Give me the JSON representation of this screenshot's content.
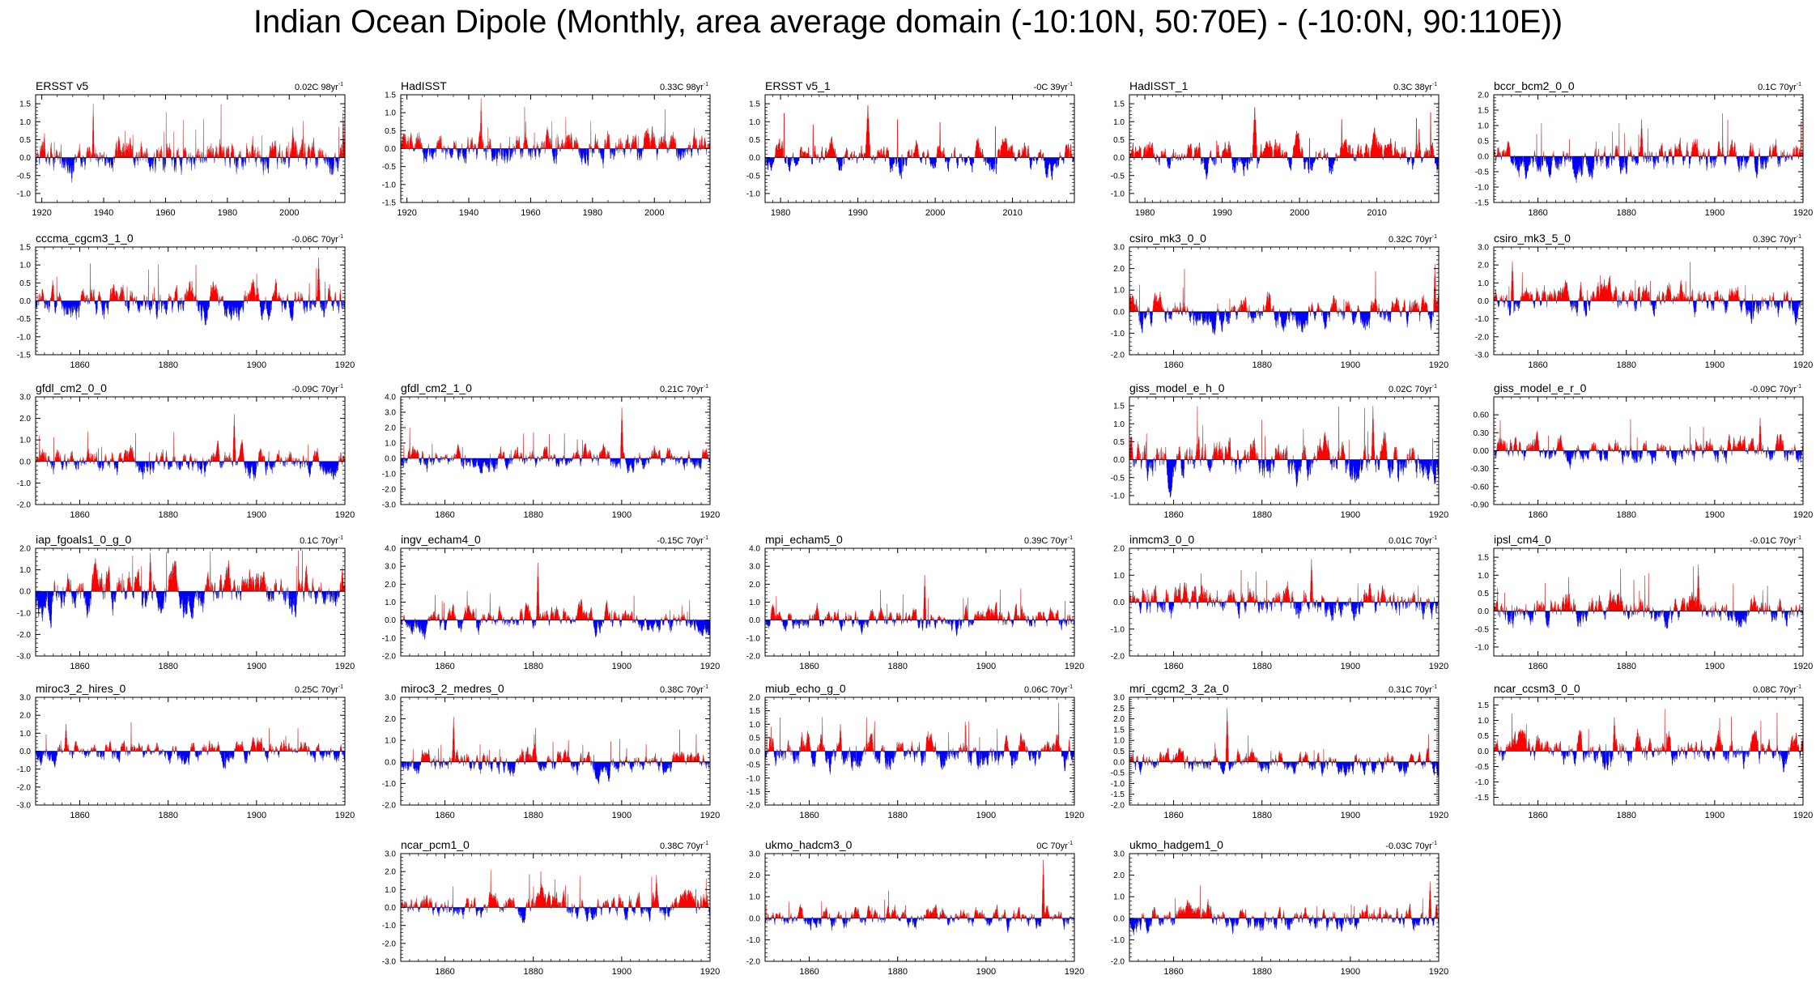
{
  "title": "Indian Ocean Dipole (Monthly, area average domain (-10:10N, 50:70E) - (-10:0N, 90:110E))",
  "colors": {
    "positive": "#ff0000",
    "negative": "#0000ff",
    "line": "#999999",
    "frame": "#000000"
  },
  "chart_data": [
    {
      "type": "bar",
      "row": 0,
      "col": 0,
      "title": "ERSST v5",
      "trend": "0.02C 98yr",
      "trend_sup": "-1",
      "xlim": [
        1918,
        2018
      ],
      "ylim": [
        -1.25,
        1.75
      ],
      "xticks": [
        1920,
        1940,
        1960,
        1980,
        2000
      ],
      "yticks": [
        "-1.0",
        "-0.5",
        "0.0",
        "0.5",
        "1.0",
        "1.5"
      ],
      "yvals": [
        -1,
        -0.5,
        0,
        0.5,
        1,
        1.5
      ],
      "amp": 0.45,
      "peak": 1.5,
      "seed": 11
    },
    {
      "type": "bar",
      "row": 0,
      "col": 1,
      "title": "HadISST",
      "trend": "0.33C 98yr",
      "trend_sup": "-1",
      "xlim": [
        1918,
        2018
      ],
      "ylim": [
        -1.5,
        1.5
      ],
      "xticks": [
        1920,
        1940,
        1960,
        1980,
        2000
      ],
      "yticks": [
        "-1.5",
        "-1.0",
        "-0.5",
        "0.0",
        "0.5",
        "1.0",
        "1.5"
      ],
      "yvals": [
        -1.5,
        -1,
        -0.5,
        0,
        0.5,
        1,
        1.5
      ],
      "amp": 0.4,
      "peak": 1.4,
      "seed": 12
    },
    {
      "type": "bar",
      "row": 0,
      "col": 2,
      "title": "ERSST v5_1",
      "trend": "-0C 39yr",
      "trend_sup": "-1",
      "xlim": [
        1978,
        2018
      ],
      "ylim": [
        -1.25,
        1.75
      ],
      "xticks": [
        1980,
        1990,
        2000,
        2010
      ],
      "yticks": [
        "-1.0",
        "-0.5",
        "0.0",
        "0.5",
        "1.0",
        "1.5"
      ],
      "yvals": [
        -1,
        -0.5,
        0,
        0.5,
        1,
        1.5
      ],
      "amp": 0.5,
      "peak": 1.45,
      "seed": 13
    },
    {
      "type": "bar",
      "row": 0,
      "col": 3,
      "title": "HadISST_1",
      "trend": "0.3C 38yr",
      "trend_sup": "-1",
      "xlim": [
        1978,
        2018
      ],
      "ylim": [
        -1.25,
        1.75
      ],
      "xticks": [
        1980,
        1990,
        2000,
        2010
      ],
      "yticks": [
        "-1.0",
        "-0.5",
        "0.0",
        "0.5",
        "1.0",
        "1.5"
      ],
      "yvals": [
        -1,
        -0.5,
        0,
        0.5,
        1,
        1.5
      ],
      "amp": 0.5,
      "peak": 1.4,
      "seed": 14
    },
    {
      "type": "bar",
      "row": 0,
      "col": 4,
      "title": "bccr_bcm2_0_0",
      "trend": "0.1C 70yr",
      "trend_sup": "-1",
      "xlim": [
        1850,
        1920
      ],
      "ylim": [
        -1.5,
        2.0
      ],
      "xticks": [
        1860,
        1880,
        1900,
        1920
      ],
      "yticks": [
        "-1.5",
        "-1.0",
        "-0.5",
        "0.0",
        "0.5",
        "1.0",
        "1.5",
        "2.0"
      ],
      "yvals": [
        -1.5,
        -1,
        -0.5,
        0,
        0.5,
        1,
        1.5,
        2
      ],
      "amp": 0.5,
      "peak": 1.2,
      "seed": 15
    },
    {
      "type": "bar",
      "row": 1,
      "col": 0,
      "title": "cccma_cgcm3_1_0",
      "trend": "-0.06C 70yr",
      "trend_sup": "-1",
      "xlim": [
        1850,
        1920
      ],
      "ylim": [
        -1.5,
        1.5
      ],
      "xticks": [
        1860,
        1880,
        1900,
        1920
      ],
      "yticks": [
        "-1.5",
        "-1.0",
        "-0.5",
        "0.0",
        "0.5",
        "1.0",
        "1.5"
      ],
      "yvals": [
        -1.5,
        -1,
        -0.5,
        0,
        0.5,
        1,
        1.5
      ],
      "amp": 0.45,
      "peak": 1.2,
      "seed": 21
    },
    {
      "type": "bar",
      "row": 1,
      "col": 3,
      "title": "csiro_mk3_0_0",
      "trend": "0.32C 70yr",
      "trend_sup": "-1",
      "xlim": [
        1850,
        1920
      ],
      "ylim": [
        -2.0,
        3.0
      ],
      "xticks": [
        1860,
        1880,
        1900,
        1920
      ],
      "yticks": [
        "-2.0",
        "-1.0",
        "0.0",
        "1.0",
        "2.0",
        "3.0"
      ],
      "yvals": [
        -2,
        -1,
        0,
        1,
        2,
        3
      ],
      "amp": 0.7,
      "peak": 2.2,
      "seed": 22
    },
    {
      "type": "bar",
      "row": 1,
      "col": 4,
      "title": "csiro_mk3_5_0",
      "trend": "0.39C 70yr",
      "trend_sup": "-1",
      "xlim": [
        1850,
        1920
      ],
      "ylim": [
        -3.0,
        3.0
      ],
      "xticks": [
        1860,
        1880,
        1900,
        1920
      ],
      "yticks": [
        "-3.0",
        "-2.0",
        "-1.0",
        "0.0",
        "1.0",
        "2.0",
        "3.0"
      ],
      "yvals": [
        -3,
        -2,
        -1,
        0,
        1,
        2,
        3
      ],
      "amp": 0.8,
      "peak": 2.2,
      "seed": 23
    },
    {
      "type": "bar",
      "row": 2,
      "col": 0,
      "title": "gfdl_cm2_0_0",
      "trend": "-0.09C 70yr",
      "trend_sup": "-1",
      "xlim": [
        1850,
        1920
      ],
      "ylim": [
        -2.0,
        3.0
      ],
      "xticks": [
        1860,
        1880,
        1900,
        1920
      ],
      "yticks": [
        "-2.0",
        "-1.0",
        "0.0",
        "1.0",
        "2.0",
        "3.0"
      ],
      "yvals": [
        -2,
        -1,
        0,
        1,
        2,
        3
      ],
      "amp": 0.6,
      "peak": 2.2,
      "seed": 31
    },
    {
      "type": "bar",
      "row": 2,
      "col": 1,
      "title": "gfdl_cm2_1_0",
      "trend": "0.21C 70yr",
      "trend_sup": "-1",
      "xlim": [
        1850,
        1920
      ],
      "ylim": [
        -3.0,
        4.0
      ],
      "xticks": [
        1860,
        1880,
        1900,
        1920
      ],
      "yticks": [
        "-3.0",
        "-2.0",
        "-1.0",
        "0.0",
        "1.0",
        "2.0",
        "3.0",
        "4.0"
      ],
      "yvals": [
        -3,
        -2,
        -1,
        0,
        1,
        2,
        3,
        4
      ],
      "amp": 0.7,
      "peak": 3.3,
      "seed": 32
    },
    {
      "type": "bar",
      "row": 2,
      "col": 3,
      "title": "giss_model_e_h_0",
      "trend": "0.02C 70yr",
      "trend_sup": "-1",
      "xlim": [
        1850,
        1920
      ],
      "ylim": [
        -1.25,
        1.75
      ],
      "xticks": [
        1860,
        1880,
        1900,
        1920
      ],
      "yticks": [
        "-1.0",
        "-0.5",
        "0.0",
        "0.5",
        "1.0",
        "1.5"
      ],
      "yvals": [
        -1,
        -0.5,
        0,
        0.5,
        1,
        1.5
      ],
      "amp": 0.55,
      "peak": 1.5,
      "seed": 33
    },
    {
      "type": "bar",
      "row": 2,
      "col": 4,
      "title": "giss_model_e_r_0",
      "trend": "-0.09C 70yr",
      "trend_sup": "-1",
      "xlim": [
        1850,
        1920
      ],
      "ylim": [
        -0.9,
        0.9
      ],
      "xticks": [
        1860,
        1880,
        1900,
        1920
      ],
      "yticks": [
        "-0.90",
        "-0.60",
        "-0.30",
        "0.00",
        "0.30",
        "0.60"
      ],
      "yvals": [
        -0.9,
        -0.6,
        -0.3,
        0,
        0.3,
        0.6
      ],
      "amp": 0.2,
      "peak": 0.55,
      "seed": 34
    },
    {
      "type": "bar",
      "row": 3,
      "col": 0,
      "title": "iap_fgoals1_0_g_0",
      "trend": "0.1C 70yr",
      "trend_sup": "-1",
      "xlim": [
        1850,
        1920
      ],
      "ylim": [
        -3.0,
        2.0
      ],
      "xticks": [
        1860,
        1880,
        1900,
        1920
      ],
      "yticks": [
        "-3.0",
        "-2.0",
        "-1.0",
        "0.0",
        "1.0",
        "2.0"
      ],
      "yvals": [
        -3,
        -2,
        -1,
        0,
        1,
        2
      ],
      "amp": 0.9,
      "peak": 1.8,
      "seed": 41
    },
    {
      "type": "bar",
      "row": 3,
      "col": 1,
      "title": "ingv_echam4_0",
      "trend": "-0.15C 70yr",
      "trend_sup": "-1",
      "xlim": [
        1850,
        1920
      ],
      "ylim": [
        -2.0,
        4.0
      ],
      "xticks": [
        1860,
        1880,
        1900,
        1920
      ],
      "yticks": [
        "-2.0",
        "-1.0",
        "0.0",
        "1.0",
        "2.0",
        "3.0",
        "4.0"
      ],
      "yvals": [
        -2,
        -1,
        0,
        1,
        2,
        3,
        4
      ],
      "amp": 0.6,
      "peak": 3.2,
      "seed": 42
    },
    {
      "type": "bar",
      "row": 3,
      "col": 2,
      "title": "mpi_echam5_0",
      "trend": "0.39C 70yr",
      "trend_sup": "-1",
      "xlim": [
        1850,
        1920
      ],
      "ylim": [
        -2.0,
        4.0
      ],
      "xticks": [
        1860,
        1880,
        1900,
        1920
      ],
      "yticks": [
        "-2.0",
        "-1.0",
        "0.0",
        "1.0",
        "2.0",
        "3.0",
        "4.0"
      ],
      "yvals": [
        -2,
        -1,
        0,
        1,
        2,
        3,
        4
      ],
      "amp": 0.6,
      "peak": 2.5,
      "seed": 43
    },
    {
      "type": "bar",
      "row": 3,
      "col": 3,
      "title": "inmcm3_0_0",
      "trend": "0.01C 70yr",
      "trend_sup": "-1",
      "xlim": [
        1850,
        1920
      ],
      "ylim": [
        -2.0,
        2.0
      ],
      "xticks": [
        1860,
        1880,
        1900,
        1920
      ],
      "yticks": [
        "-2.0",
        "-1.0",
        "0.0",
        "1.0",
        "2.0"
      ],
      "yvals": [
        -2,
        -1,
        0,
        1,
        2
      ],
      "amp": 0.6,
      "peak": 1.6,
      "seed": 44
    },
    {
      "type": "bar",
      "row": 3,
      "col": 4,
      "title": "ipsl_cm4_0",
      "trend": "-0.01C 70yr",
      "trend_sup": "-1",
      "xlim": [
        1850,
        1920
      ],
      "ylim": [
        -1.25,
        1.75
      ],
      "xticks": [
        1860,
        1880,
        1900,
        1920
      ],
      "yticks": [
        "-1.0",
        "-0.5",
        "0.0",
        "0.5",
        "1.0",
        "1.5"
      ],
      "yvals": [
        -1,
        -0.5,
        0,
        0.5,
        1,
        1.5
      ],
      "amp": 0.4,
      "peak": 1.3,
      "seed": 45
    },
    {
      "type": "bar",
      "row": 4,
      "col": 0,
      "title": "miroc3_2_hires_0",
      "trend": "0.25C 70yr",
      "trend_sup": "-1",
      "xlim": [
        1850,
        1920
      ],
      "ylim": [
        -3.0,
        3.0
      ],
      "xticks": [
        1860,
        1880,
        1900,
        1920
      ],
      "yticks": [
        "-3.0",
        "-2.0",
        "-1.0",
        "0.0",
        "1.0",
        "2.0",
        "3.0"
      ],
      "yvals": [
        -3,
        -2,
        -1,
        0,
        1,
        2,
        3
      ],
      "amp": 0.6,
      "peak": 1.5,
      "seed": 51
    },
    {
      "type": "bar",
      "row": 4,
      "col": 1,
      "title": "miroc3_2_medres_0",
      "trend": "0.38C 70yr",
      "trend_sup": "-1",
      "xlim": [
        1850,
        1920
      ],
      "ylim": [
        -2.0,
        3.0
      ],
      "xticks": [
        1860,
        1880,
        1900,
        1920
      ],
      "yticks": [
        "-2.0",
        "-1.0",
        "0.0",
        "1.0",
        "2.0",
        "3.0"
      ],
      "yvals": [
        -2,
        -1,
        0,
        1,
        2,
        3
      ],
      "amp": 0.5,
      "peak": 2.1,
      "seed": 52
    },
    {
      "type": "bar",
      "row": 4,
      "col": 2,
      "title": "miub_echo_g_0",
      "trend": "0.06C 70yr",
      "trend_sup": "-1",
      "xlim": [
        1850,
        1920
      ],
      "ylim": [
        -2.0,
        2.0
      ],
      "xticks": [
        1860,
        1880,
        1900,
        1920
      ],
      "yticks": [
        "-2.0",
        "-1.5",
        "-1.0",
        "-0.5",
        "0.0",
        "0.5",
        "1.0",
        "1.5",
        "2.0"
      ],
      "yvals": [
        -2,
        -1.5,
        -1,
        -0.5,
        0,
        0.5,
        1,
        1.5,
        2
      ],
      "amp": 0.55,
      "peak": 1.0,
      "seed": 53
    },
    {
      "type": "bar",
      "row": 4,
      "col": 3,
      "title": "mri_cgcm2_3_2a_0",
      "trend": "0.31C 70yr",
      "trend_sup": "-1",
      "xlim": [
        1850,
        1920
      ],
      "ylim": [
        -2.0,
        3.0
      ],
      "xticks": [
        1860,
        1880,
        1900,
        1920
      ],
      "yticks": [
        "-2.0",
        "-1.5",
        "-1.0",
        "-0.5",
        "0.0",
        "0.5",
        "1.0",
        "1.5",
        "2.0",
        "2.5",
        "3.0"
      ],
      "yvals": [
        -2,
        -1.5,
        -1,
        -0.5,
        0,
        0.5,
        1,
        1.5,
        2,
        2.5,
        3
      ],
      "amp": 0.5,
      "peak": 2.5,
      "seed": 54
    },
    {
      "type": "bar",
      "row": 4,
      "col": 4,
      "title": "ncar_ccsm3_0_0",
      "trend": "0.08C 70yr",
      "trend_sup": "-1",
      "xlim": [
        1850,
        1920
      ],
      "ylim": [
        -1.75,
        1.75
      ],
      "xticks": [
        1860,
        1880,
        1900,
        1920
      ],
      "yticks": [
        "-1.5",
        "-1.0",
        "-0.5",
        "0.0",
        "0.5",
        "1.0",
        "1.5"
      ],
      "yvals": [
        -1.5,
        -1,
        -0.5,
        0,
        0.5,
        1,
        1.5
      ],
      "amp": 0.5,
      "peak": 1.1,
      "seed": 55
    },
    {
      "type": "bar",
      "row": 5,
      "col": 1,
      "title": "ncar_pcm1_0",
      "trend": "0.38C 70yr",
      "trend_sup": "-1",
      "xlim": [
        1850,
        1920
      ],
      "ylim": [
        -3.0,
        3.0
      ],
      "xticks": [
        1860,
        1880,
        1900,
        1920
      ],
      "yticks": [
        "-3.0",
        "-2.0",
        "-1.0",
        "0.0",
        "1.0",
        "2.0",
        "3.0"
      ],
      "yvals": [
        -3,
        -2,
        -1,
        0,
        1,
        2,
        3
      ],
      "amp": 0.7,
      "peak": 1.8,
      "seed": 61
    },
    {
      "type": "bar",
      "row": 5,
      "col": 2,
      "title": "ukmo_hadcm3_0",
      "trend": "0C 70yr",
      "trend_sup": "-1",
      "xlim": [
        1850,
        1920
      ],
      "ylim": [
        -2.0,
        3.0
      ],
      "xticks": [
        1860,
        1880,
        1900,
        1920
      ],
      "yticks": [
        "-2.0",
        "-1.0",
        "0.0",
        "1.0",
        "2.0",
        "3.0"
      ],
      "yvals": [
        -2,
        -1,
        0,
        1,
        2,
        3
      ],
      "amp": 0.45,
      "peak": 2.7,
      "seed": 62
    },
    {
      "type": "bar",
      "row": 5,
      "col": 3,
      "title": "ukmo_hadgem1_0",
      "trend": "-0.03C 70yr",
      "trend_sup": "-1",
      "xlim": [
        1850,
        1920
      ],
      "ylim": [
        -2.0,
        3.0
      ],
      "xticks": [
        1860,
        1880,
        1900,
        1920
      ],
      "yticks": [
        "-2.0",
        "-1.0",
        "0.0",
        "1.0",
        "2.0",
        "3.0"
      ],
      "yvals": [
        -2,
        -1,
        0,
        1,
        2,
        3
      ],
      "amp": 0.55,
      "peak": 1.7,
      "seed": 63
    }
  ]
}
